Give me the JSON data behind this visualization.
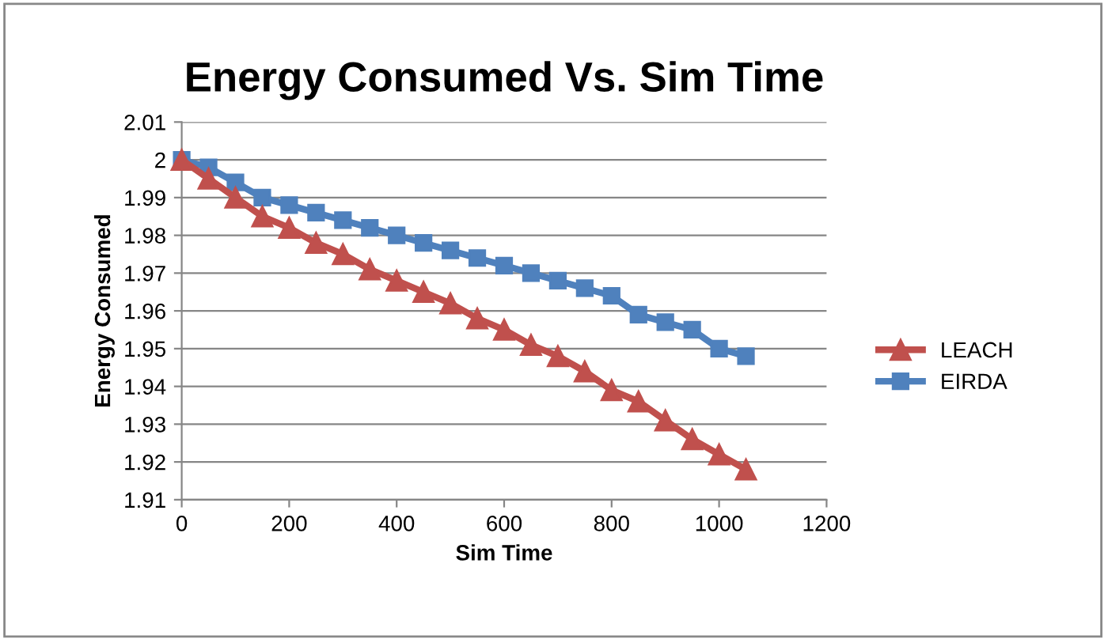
{
  "chart_data": {
    "type": "line",
    "title": "Energy Consumed Vs. Sim Time",
    "xlabel": "Sim Time",
    "ylabel": "Energy Consumed",
    "x": [
      0,
      50,
      100,
      150,
      200,
      250,
      300,
      350,
      400,
      450,
      500,
      550,
      600,
      650,
      700,
      750,
      800,
      850,
      900,
      950,
      1000,
      1050
    ],
    "series": [
      {
        "name": "LEACH",
        "color": "#c0504d",
        "marker": "triangle",
        "values": [
          2.0,
          1.995,
          1.99,
          1.985,
          1.982,
          1.978,
          1.975,
          1.971,
          1.968,
          1.965,
          1.962,
          1.958,
          1.955,
          1.951,
          1.948,
          1.944,
          1.939,
          1.936,
          1.931,
          1.926,
          1.922,
          1.918
        ]
      },
      {
        "name": "EIRDA",
        "color": "#4f81bd",
        "marker": "square",
        "values": [
          2.0,
          1.998,
          1.994,
          1.99,
          1.988,
          1.986,
          1.984,
          1.982,
          1.98,
          1.978,
          1.976,
          1.974,
          1.972,
          1.97,
          1.968,
          1.966,
          1.964,
          1.959,
          1.957,
          1.955,
          1.95,
          1.948
        ]
      }
    ],
    "xlim": [
      0,
      1200
    ],
    "xticks": [
      0,
      200,
      400,
      600,
      800,
      1000,
      1200
    ],
    "ylim": [
      1.91,
      2.01
    ],
    "yticks": [
      1.91,
      1.92,
      1.93,
      1.94,
      1.95,
      1.96,
      1.97,
      1.98,
      1.99,
      2,
      2.01
    ],
    "grid": "y",
    "legend": "right",
    "line_style": "solid"
  }
}
